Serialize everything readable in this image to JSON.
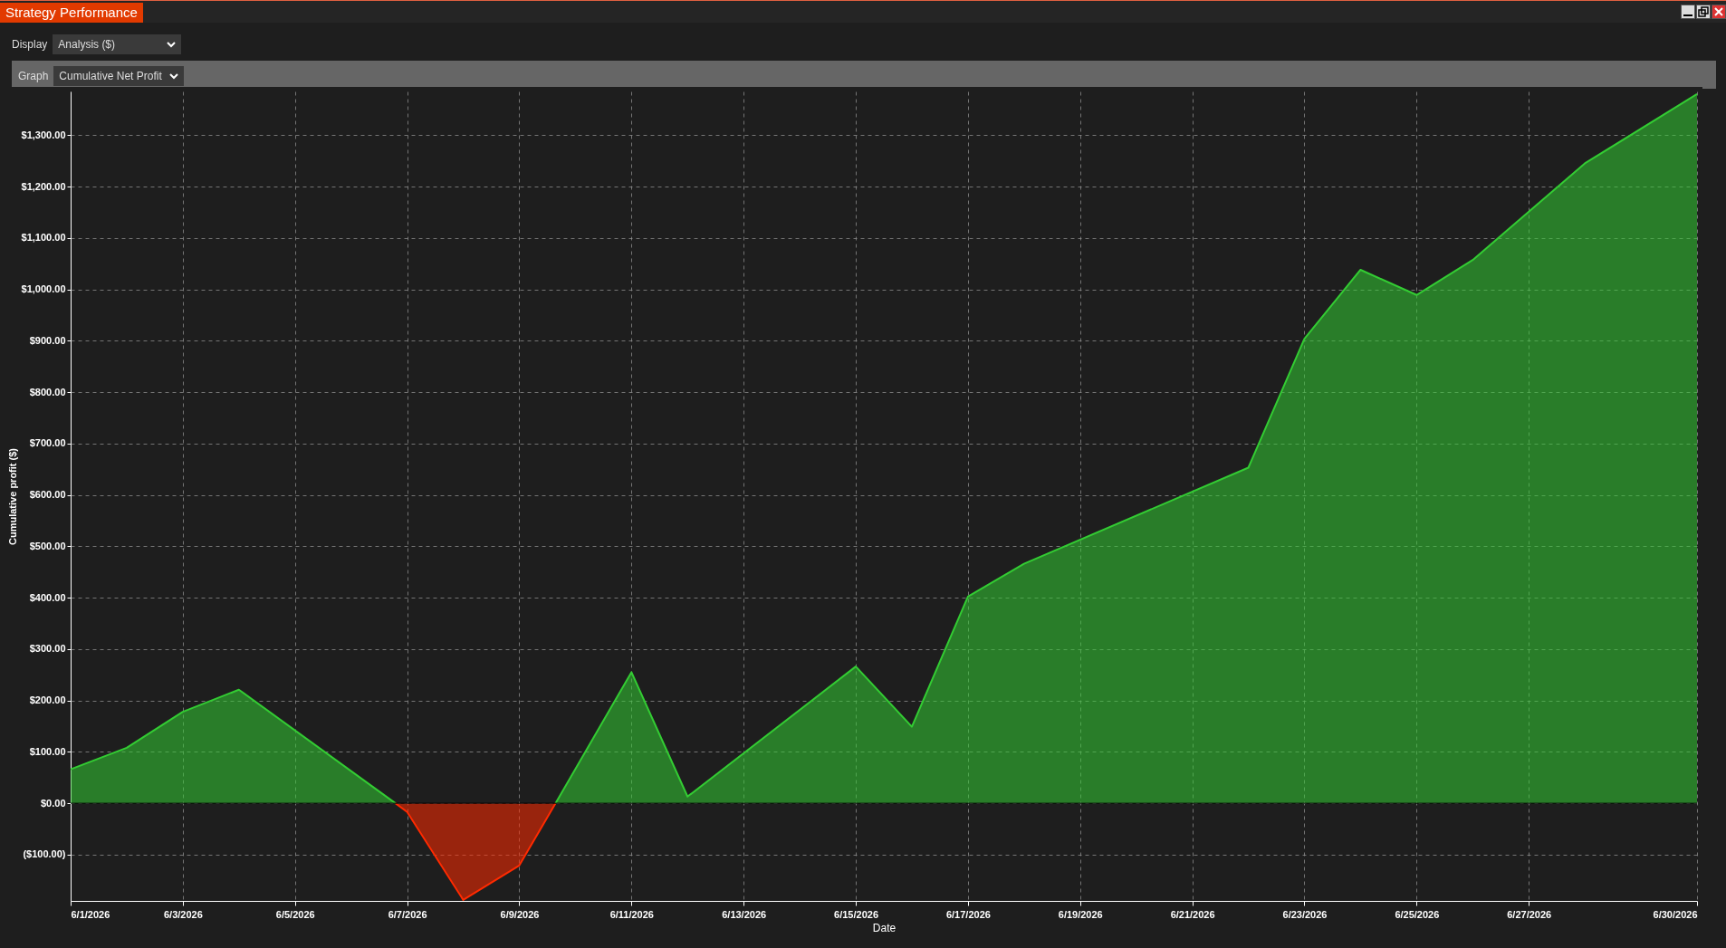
{
  "chart_data": {
    "type": "area",
    "title": "Strategy Performance",
    "xlabel": "Date",
    "ylabel": "Cumulative profit ($)",
    "annotations": [
      "Display",
      "Analysis ($)",
      "Graph",
      "Cumulative Net Profit"
    ],
    "series": [
      {
        "color": "#33cc33",
        "x": [
          "2026-06-01",
          "2026-06-02",
          "2026-06-03",
          "2026-06-04",
          "2026-06-06T19:00",
          "2026-06-08",
          "2026-06-09T15:30",
          "2026-06-11",
          "2026-06-12",
          "2026-06-15",
          "2026-06-16",
          "2026-06-17",
          "2026-06-18",
          "2026-06-22",
          "2026-06-23",
          "2026-06-24",
          "2026-06-25",
          "2026-06-26",
          "2026-06-28",
          "2026-06-30"
        ],
        "values": [
          66,
          108,
          178,
          221,
          0,
          null,
          0,
          255,
          13,
          266,
          149,
          402,
          466,
          653,
          904,
          1038,
          989,
          1057,
          1245,
          1380
        ]
      },
      {
        "color": "#ff2a00",
        "x": [
          "2026-06-06T19:00",
          "2026-06-07",
          "2026-06-08",
          "2026-06-09",
          "2026-06-09T15:30"
        ],
        "values": [
          0,
          -17,
          -188,
          -121,
          0
        ]
      }
    ],
    "xlim": [
      "2026-06-01",
      "2026-06-30"
    ],
    "xticks": [
      {
        "value": "2026-06-01",
        "label": "6/1/2026"
      },
      {
        "value": "2026-06-03",
        "label": "6/3/2026"
      },
      {
        "value": "2026-06-05",
        "label": "6/5/2026"
      },
      {
        "value": "2026-06-07",
        "label": "6/7/2026"
      },
      {
        "value": "2026-06-09",
        "label": "6/9/2026"
      },
      {
        "value": "2026-06-11",
        "label": "6/11/2026"
      },
      {
        "value": "2026-06-13",
        "label": "6/13/2026"
      },
      {
        "value": "2026-06-15",
        "label": "6/15/2026"
      },
      {
        "value": "2026-06-17",
        "label": "6/17/2026"
      },
      {
        "value": "2026-06-19",
        "label": "6/19/2026"
      },
      {
        "value": "2026-06-21",
        "label": "6/21/2026"
      },
      {
        "value": "2026-06-23",
        "label": "6/23/2026"
      },
      {
        "value": "2026-06-25",
        "label": "6/25/2026"
      },
      {
        "value": "2026-06-27",
        "label": "6/27/2026"
      },
      {
        "value": "2026-06-30",
        "label": "6/30/2026"
      }
    ],
    "ylim": [
      -190,
      1385
    ],
    "yticks": [
      {
        "value": -100,
        "label": "($100.00)"
      },
      {
        "value": 0,
        "label": "$0.00"
      },
      {
        "value": 100,
        "label": "$100.00"
      },
      {
        "value": 200,
        "label": "$200.00"
      },
      {
        "value": 300,
        "label": "$300.00"
      },
      {
        "value": 400,
        "label": "$400.00"
      },
      {
        "value": 500,
        "label": "$500.00"
      },
      {
        "value": 600,
        "label": "$600.00"
      },
      {
        "value": 700,
        "label": "$700.00"
      },
      {
        "value": 800,
        "label": "$800.00"
      },
      {
        "value": 900,
        "label": "$900.00"
      },
      {
        "value": 1000,
        "label": "$1,000.00"
      },
      {
        "value": 1100,
        "label": "$1,100.00"
      },
      {
        "value": 1200,
        "label": "$1,200.00"
      },
      {
        "value": 1300,
        "label": "$1,300.00"
      }
    ],
    "ref_lines": [
      {
        "axis": "y",
        "value": 0,
        "color": "#000000"
      }
    ],
    "grid": true
  }
}
